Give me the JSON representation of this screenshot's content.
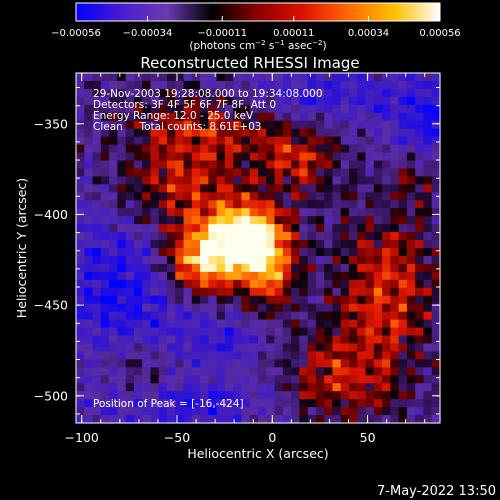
{
  "chart_data": {
    "type": "heatmap",
    "title": "Reconstructed RHESSI Image",
    "xlabel": "Heliocentric X (arcsec)",
    "ylabel": "Heliocentric Y (arcsec)",
    "xlim": [
      -103,
      88
    ],
    "ylim": [
      -515,
      -322
    ],
    "xticks": [
      {
        "value": -100,
        "label": "−100"
      },
      {
        "value": -50,
        "label": "−50"
      },
      {
        "value": 0,
        "label": "0"
      },
      {
        "value": 50,
        "label": "50"
      }
    ],
    "yticks": [
      {
        "value": -350,
        "label": "−350"
      },
      {
        "value": -400,
        "label": "−400"
      },
      {
        "value": -450,
        "label": "−450"
      },
      {
        "value": -500,
        "label": "−500"
      }
    ],
    "colorbar": {
      "range": [
        -0.00056,
        0.00056
      ],
      "ticks": [
        {
          "value": -0.00056,
          "label": "−0.00056"
        },
        {
          "value": -0.00034,
          "label": "−0.00034"
        },
        {
          "value": -0.00011,
          "label": "−0.00011"
        },
        {
          "value": 0.00011,
          "label": "0.00011"
        },
        {
          "value": 0.00034,
          "label": "0.00034"
        },
        {
          "value": 0.00056,
          "label": "0.00056"
        }
      ],
      "units_prefix": "(photons cm",
      "units_exp1": "−2",
      "units_mid1": " s",
      "units_exp2": "−1",
      "units_mid2": " asec",
      "units_exp3": "−2",
      "units_suffix": ")",
      "colors": [
        "#0000ff",
        "#4a1ccf",
        "#6a3ab0",
        "#000000",
        "#8a0000",
        "#e01000",
        "#ff6a00",
        "#ffc000",
        "#ffffff"
      ]
    },
    "annotations": [
      "29-Nov-2003 19:28:08.000 to 19:34:08.000",
      "Detectors: 3F 4F 5F 6F 7F 8F, Att 0",
      "Energy Range: 12.0 - 25.0 keV",
      "Clean     Total counts: 8.61E+03"
    ],
    "peak_label": "Position of Peak = [-16,-424]",
    "peak": [
      -16,
      -424
    ],
    "sources": [
      {
        "x": -16,
        "y": -412,
        "sx": 16,
        "sy": 14,
        "amp": 1.0
      },
      {
        "x": -38,
        "y": -428,
        "sx": 14,
        "sy": 12,
        "amp": 0.72
      },
      {
        "x": -2,
        "y": -432,
        "sx": 10,
        "sy": 16,
        "amp": 0.55
      },
      {
        "x": -55,
        "y": -390,
        "sx": 22,
        "sy": 18,
        "amp": 0.45
      },
      {
        "x": -35,
        "y": -355,
        "sx": 30,
        "sy": 16,
        "amp": 0.42
      },
      {
        "x": 15,
        "y": -368,
        "sx": 14,
        "sy": 14,
        "amp": 0.38
      },
      {
        "x": 60,
        "y": -440,
        "sx": 18,
        "sy": 28,
        "amp": 0.5
      },
      {
        "x": 35,
        "y": -490,
        "sx": 22,
        "sy": 18,
        "amp": 0.42
      },
      {
        "x": -70,
        "y": -485,
        "sx": 16,
        "sy": 14,
        "amp": 0.32
      },
      {
        "x": 75,
        "y": -380,
        "sx": 10,
        "sy": 12,
        "amp": 0.3
      }
    ],
    "negative_regions": [
      {
        "x": -80,
        "y": -440,
        "sx": 24,
        "sy": 40,
        "amp": 0.55
      },
      {
        "x": 25,
        "y": -335,
        "sx": 30,
        "sy": 12,
        "amp": 0.45
      },
      {
        "x": 80,
        "y": -350,
        "sx": 14,
        "sy": 20,
        "amp": 0.5
      },
      {
        "x": -40,
        "y": -505,
        "sx": 30,
        "sy": 10,
        "amp": 0.45
      },
      {
        "x": -30,
        "y": -470,
        "sx": 22,
        "sy": 12,
        "amp": 0.35
      }
    ]
  },
  "timestamp": "7-May-2022 13:50"
}
